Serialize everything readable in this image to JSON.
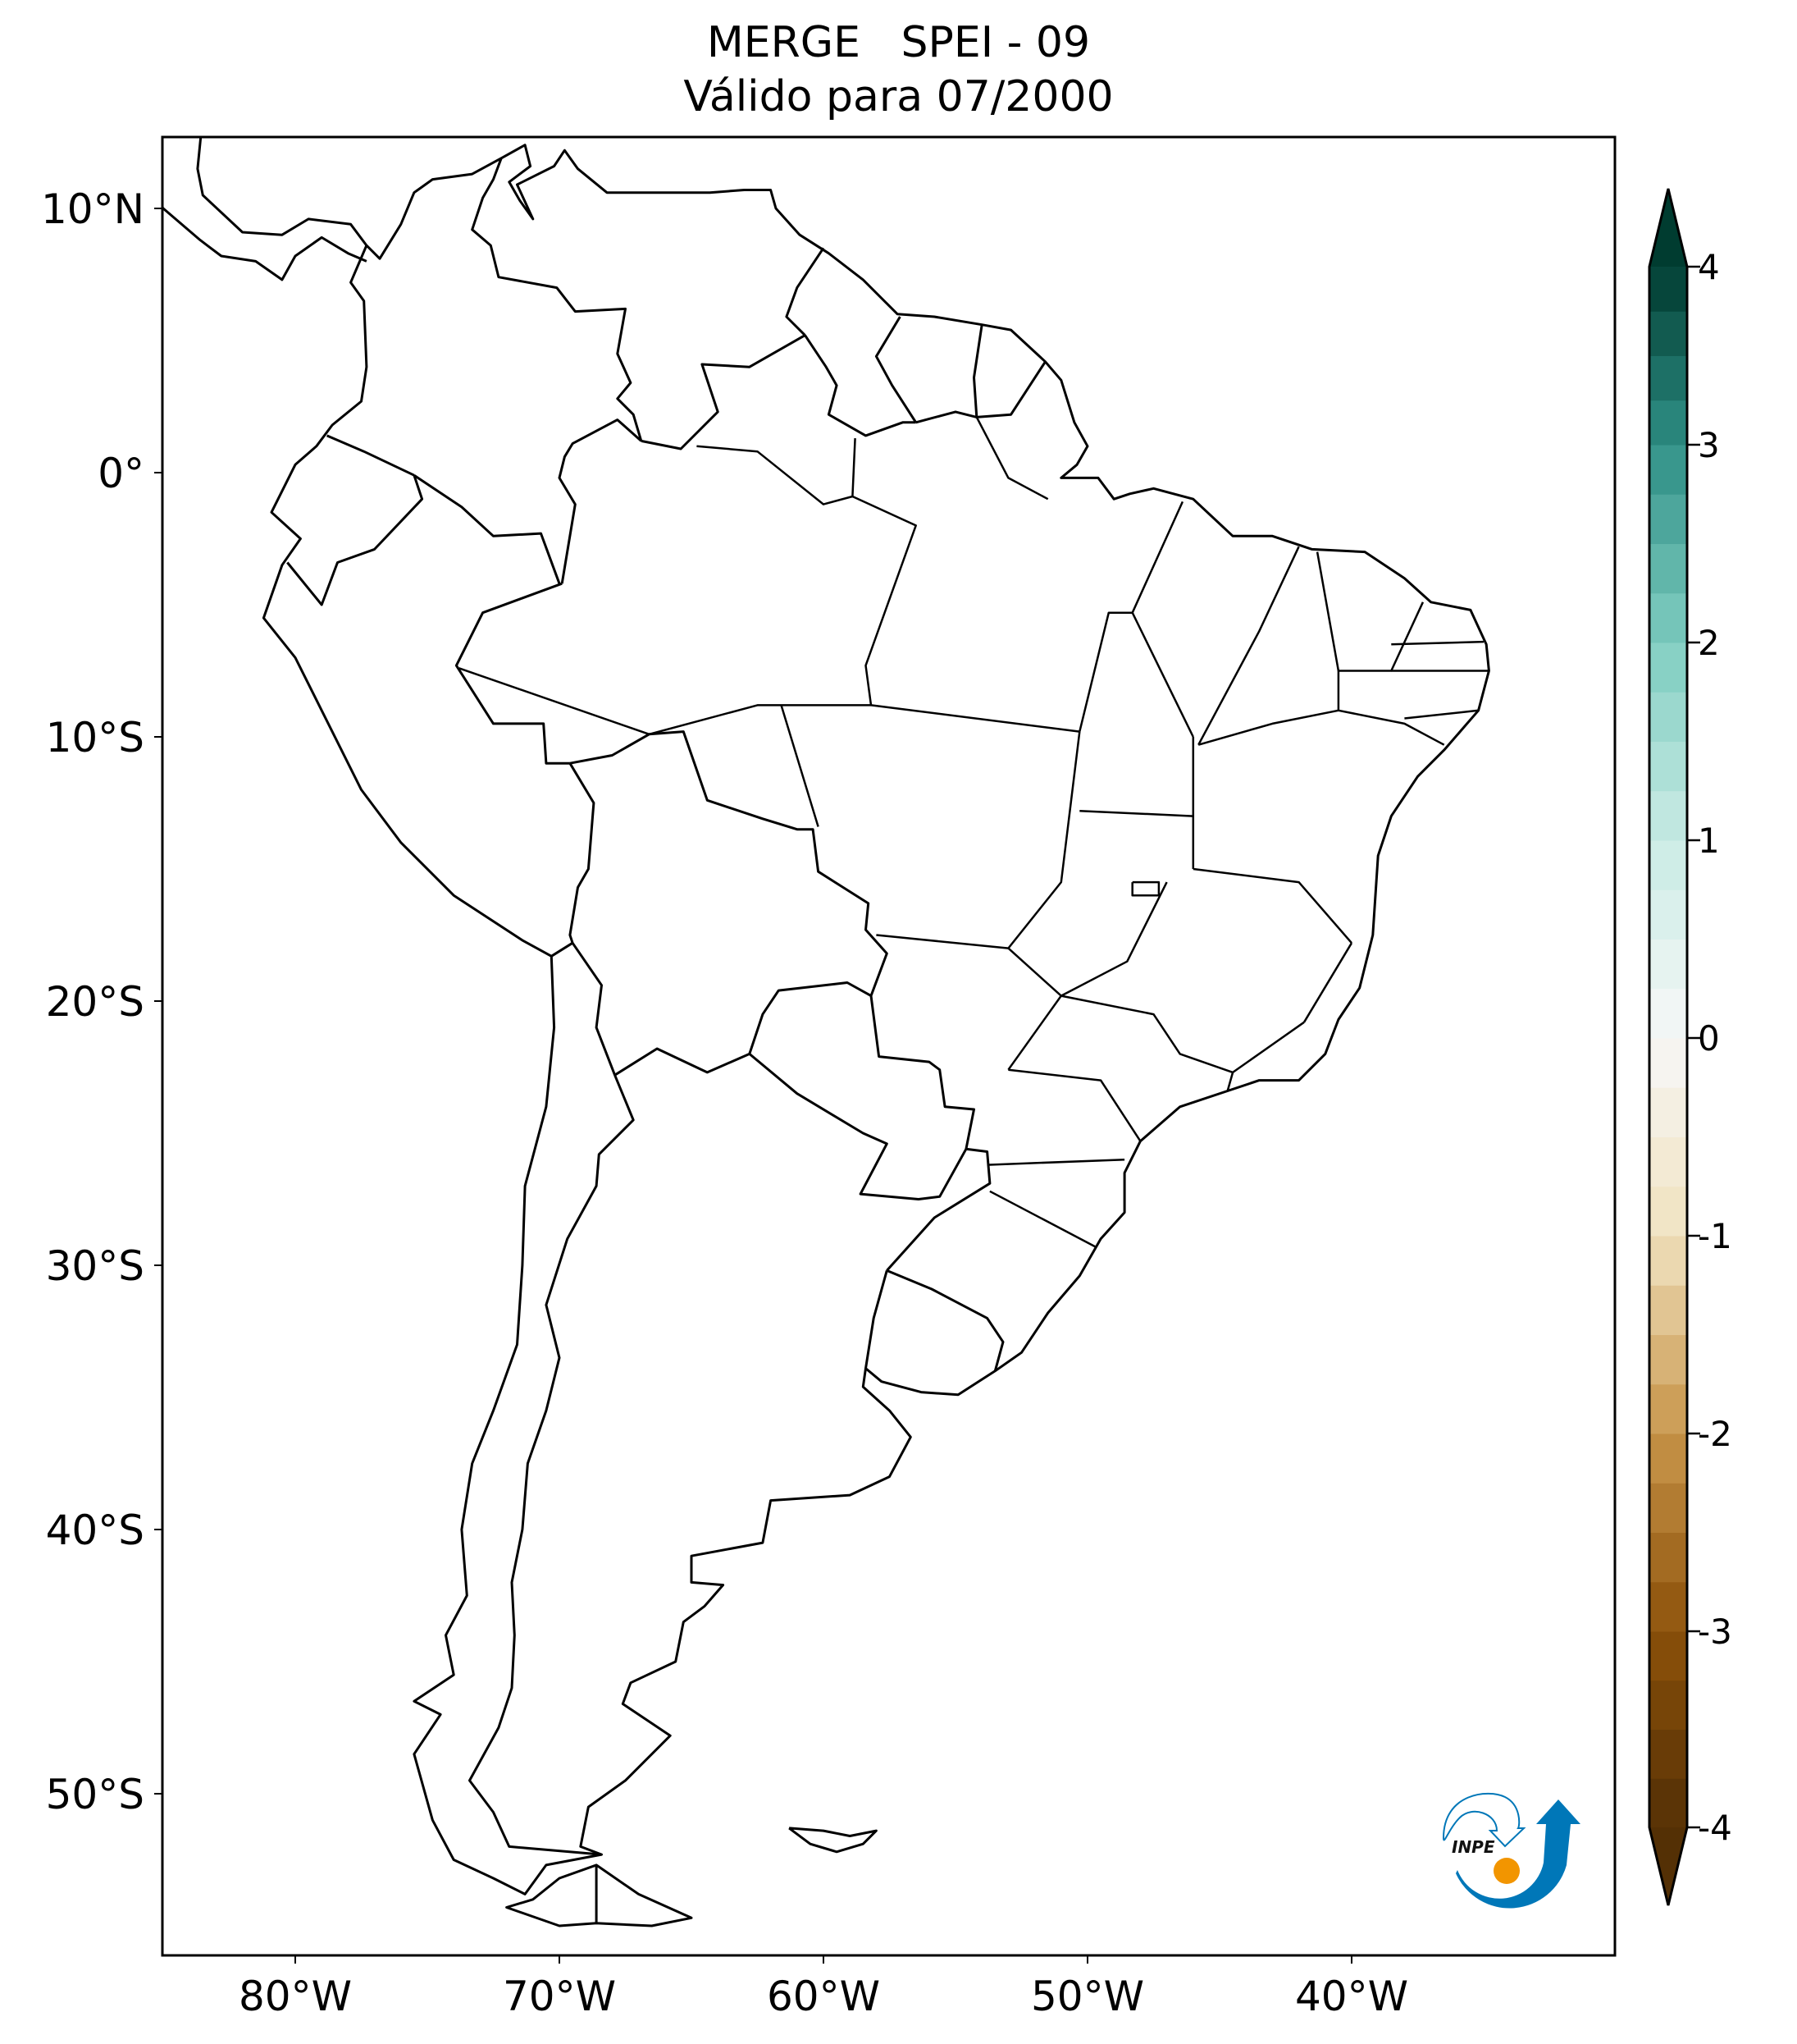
{
  "title": {
    "line1": "MERGE   SPEI - 09",
    "line2": "Válido para 07/2000"
  },
  "map": {
    "projection": "PlateCarree",
    "extent_lon": [
      -85,
      -30
    ],
    "extent_lat": [
      -56,
      12.7
    ],
    "lat_ticks": [
      {
        "value": 10,
        "label": "10°N"
      },
      {
        "value": 0,
        "label": "0°"
      },
      {
        "value": -10,
        "label": "10°S"
      },
      {
        "value": -20,
        "label": "20°S"
      },
      {
        "value": -30,
        "label": "30°S"
      },
      {
        "value": -40,
        "label": "40°S"
      },
      {
        "value": -50,
        "label": "50°S"
      }
    ],
    "lon_ticks": [
      {
        "value": -80,
        "label": "80°W"
      },
      {
        "value": -70,
        "label": "70°W"
      },
      {
        "value": -60,
        "label": "60°W"
      },
      {
        "value": -50,
        "label": "50°W"
      },
      {
        "value": -40,
        "label": "40°W"
      }
    ],
    "field_fill": "near zero (white) everywhere",
    "border_color": "#000000"
  },
  "colorbar": {
    "colormap": "BrBG",
    "extend": "both",
    "ticks": [
      {
        "value": 4,
        "label": "4"
      },
      {
        "value": 3,
        "label": "3"
      },
      {
        "value": 2,
        "label": "2"
      },
      {
        "value": 1,
        "label": "1"
      },
      {
        "value": 0,
        "label": "0"
      },
      {
        "value": -1,
        "label": "-1"
      },
      {
        "value": -2,
        "label": "-2"
      },
      {
        "value": -3,
        "label": "-3"
      },
      {
        "value": -4,
        "label": "-4"
      }
    ],
    "color_stops": [
      "#543005",
      "#8c510a",
      "#c8954a",
      "#f0e2bf",
      "#f7f7f7",
      "#c9ebe5",
      "#7fcdc0",
      "#2f8f86",
      "#003c30"
    ]
  },
  "logo": {
    "text": "INPE",
    "blue": "#0077b8",
    "orange": "#f29500"
  }
}
